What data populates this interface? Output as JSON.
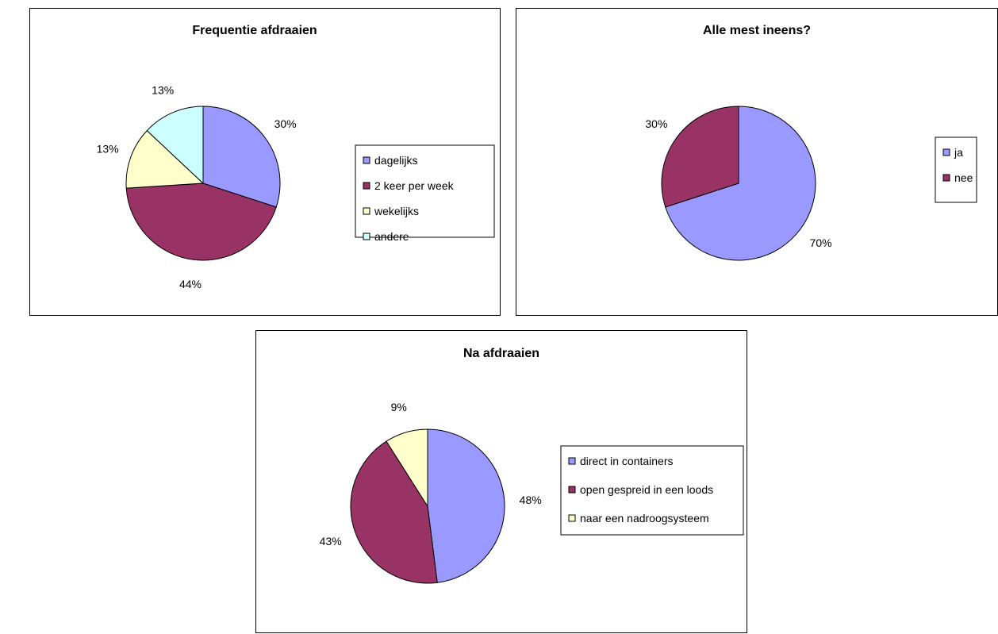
{
  "chart_data": [
    {
      "type": "pie",
      "title": "Frequentie afdraaien",
      "categories": [
        "dagelijks",
        "2 keer per week",
        "wekelijks",
        "andere"
      ],
      "values": [
        30,
        44,
        13,
        13
      ],
      "labels": [
        "30%",
        "44%",
        "13%",
        "13%"
      ],
      "colors": [
        "#9999ff",
        "#993366",
        "#ffffcc",
        "#ccffff"
      ],
      "legend": "right"
    },
    {
      "type": "pie",
      "title": "Alle mest ineens?",
      "categories": [
        "ja",
        "nee"
      ],
      "values": [
        70,
        30
      ],
      "labels": [
        "70%",
        "30%"
      ],
      "colors": [
        "#9999ff",
        "#993366"
      ],
      "legend": "right"
    },
    {
      "type": "pie",
      "title": "Na afdraaien",
      "categories": [
        "direct in containers",
        "open gespreid in een loods",
        "naar een nadroogsysteem"
      ],
      "values": [
        48,
        43,
        9
      ],
      "labels": [
        "48%",
        "43%",
        "9%"
      ],
      "colors": [
        "#9999ff",
        "#993366",
        "#ffffcc"
      ],
      "legend": "right"
    }
  ]
}
